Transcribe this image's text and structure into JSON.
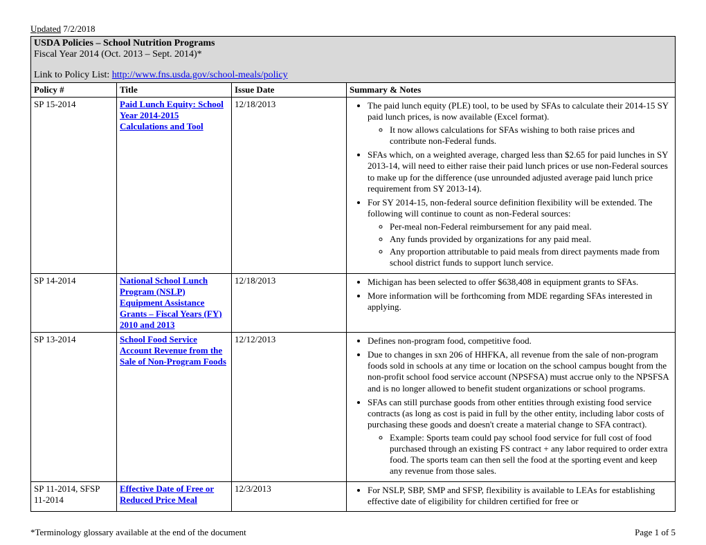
{
  "updated_label": "Updated",
  "updated_date": "7/2/2018",
  "header": {
    "title": "USDA Policies – School Nutrition Programs",
    "fiscal": "Fiscal Year 2014 (Oct. 2013 – Sept. 2014)*",
    "link_prefix": "Link to Policy List: ",
    "link_url": "http://www.fns.usda.gov/school-meals/policy"
  },
  "columns": {
    "policy": "Policy #",
    "title": "Title",
    "date": "Issue Date",
    "summary": "Summary & Notes"
  },
  "rows": [
    {
      "policy": "SP 15-2014",
      "title": "Paid Lunch Equity: School Year 2014-2015 Calculations and Tool",
      "date": "12/18/2013",
      "bullets": [
        {
          "text": "The paid lunch equity (PLE) tool, to be used by SFAs to calculate their 2014-15 SY paid lunch prices, is now available (Excel format).",
          "sub": [
            "It now allows calculations for SFAs wishing to both raise prices and contribute non-Federal funds."
          ]
        },
        {
          "text": "SFAs which, on a weighted average, charged less than $2.65 for paid lunches in SY 2013-14, will need to either raise their paid lunch prices or use non-Federal sources to make up for the difference (use unrounded adjusted average paid lunch price requirement from SY 2013-14)."
        },
        {
          "text": "For SY 2014-15, non-federal source definition flexibility will be extended. The following will continue to count as non-Federal sources:",
          "sub": [
            "Per-meal non-Federal reimbursement for any paid meal.",
            "Any funds provided by organizations for any paid meal.",
            "Any proportion attributable to paid meals from direct payments made from school district funds to support lunch service."
          ]
        }
      ]
    },
    {
      "policy": "SP 14-2014",
      "title": "National School Lunch Program (NSLP) Equipment Assistance Grants – Fiscal Years (FY) 2010 and 2013",
      "date": "12/18/2013",
      "bullets": [
        {
          "text": "Michigan has been selected to offer $638,408 in equipment grants to SFAs."
        },
        {
          "text": "More information will be forthcoming from MDE regarding SFAs interested in applying."
        }
      ]
    },
    {
      "policy": "SP 13-2014",
      "title": "School Food Service Account Revenue from the Sale of Non-Program Foods",
      "date": "12/12/2013",
      "bullets": [
        {
          "text": "Defines non-program food, competitive food."
        },
        {
          "text": "Due to changes in sxn 206 of HHFKA, all revenue from the sale of non-program foods sold in schools at any time or location on the school campus bought from the non-profit school food service account (NPSFSA) must accrue only to the NPSFSA and is no longer allowed to benefit student organizations or school programs."
        },
        {
          "text": "SFAs can still purchase goods from other entities through existing food service contracts (as long as cost is paid in full by the other entity, including labor costs of purchasing these goods and doesn't create a material change to SFA contract).",
          "sub": [
            "Example: Sports team could pay school food service for full cost of food purchased through an existing FS contract + any labor required to order extra food. The sports team can then sell the food at the sporting event and keep any revenue from those sales."
          ]
        }
      ]
    },
    {
      "policy": "SP 11-2014, SFSP 11-2014",
      "title": "Effective Date of Free or Reduced Price Meal",
      "date": "12/3/2013",
      "bullets": [
        {
          "text": "For NSLP, SBP, SMP and SFSP, flexibility is available to LEAs for establishing effective date of eligibility for children certified for free or"
        }
      ]
    }
  ],
  "footer": {
    "glossary": "*Terminology glossary available at the end of the document",
    "page_prefix": "Page ",
    "page_num": "1",
    "page_of": " of 5"
  }
}
